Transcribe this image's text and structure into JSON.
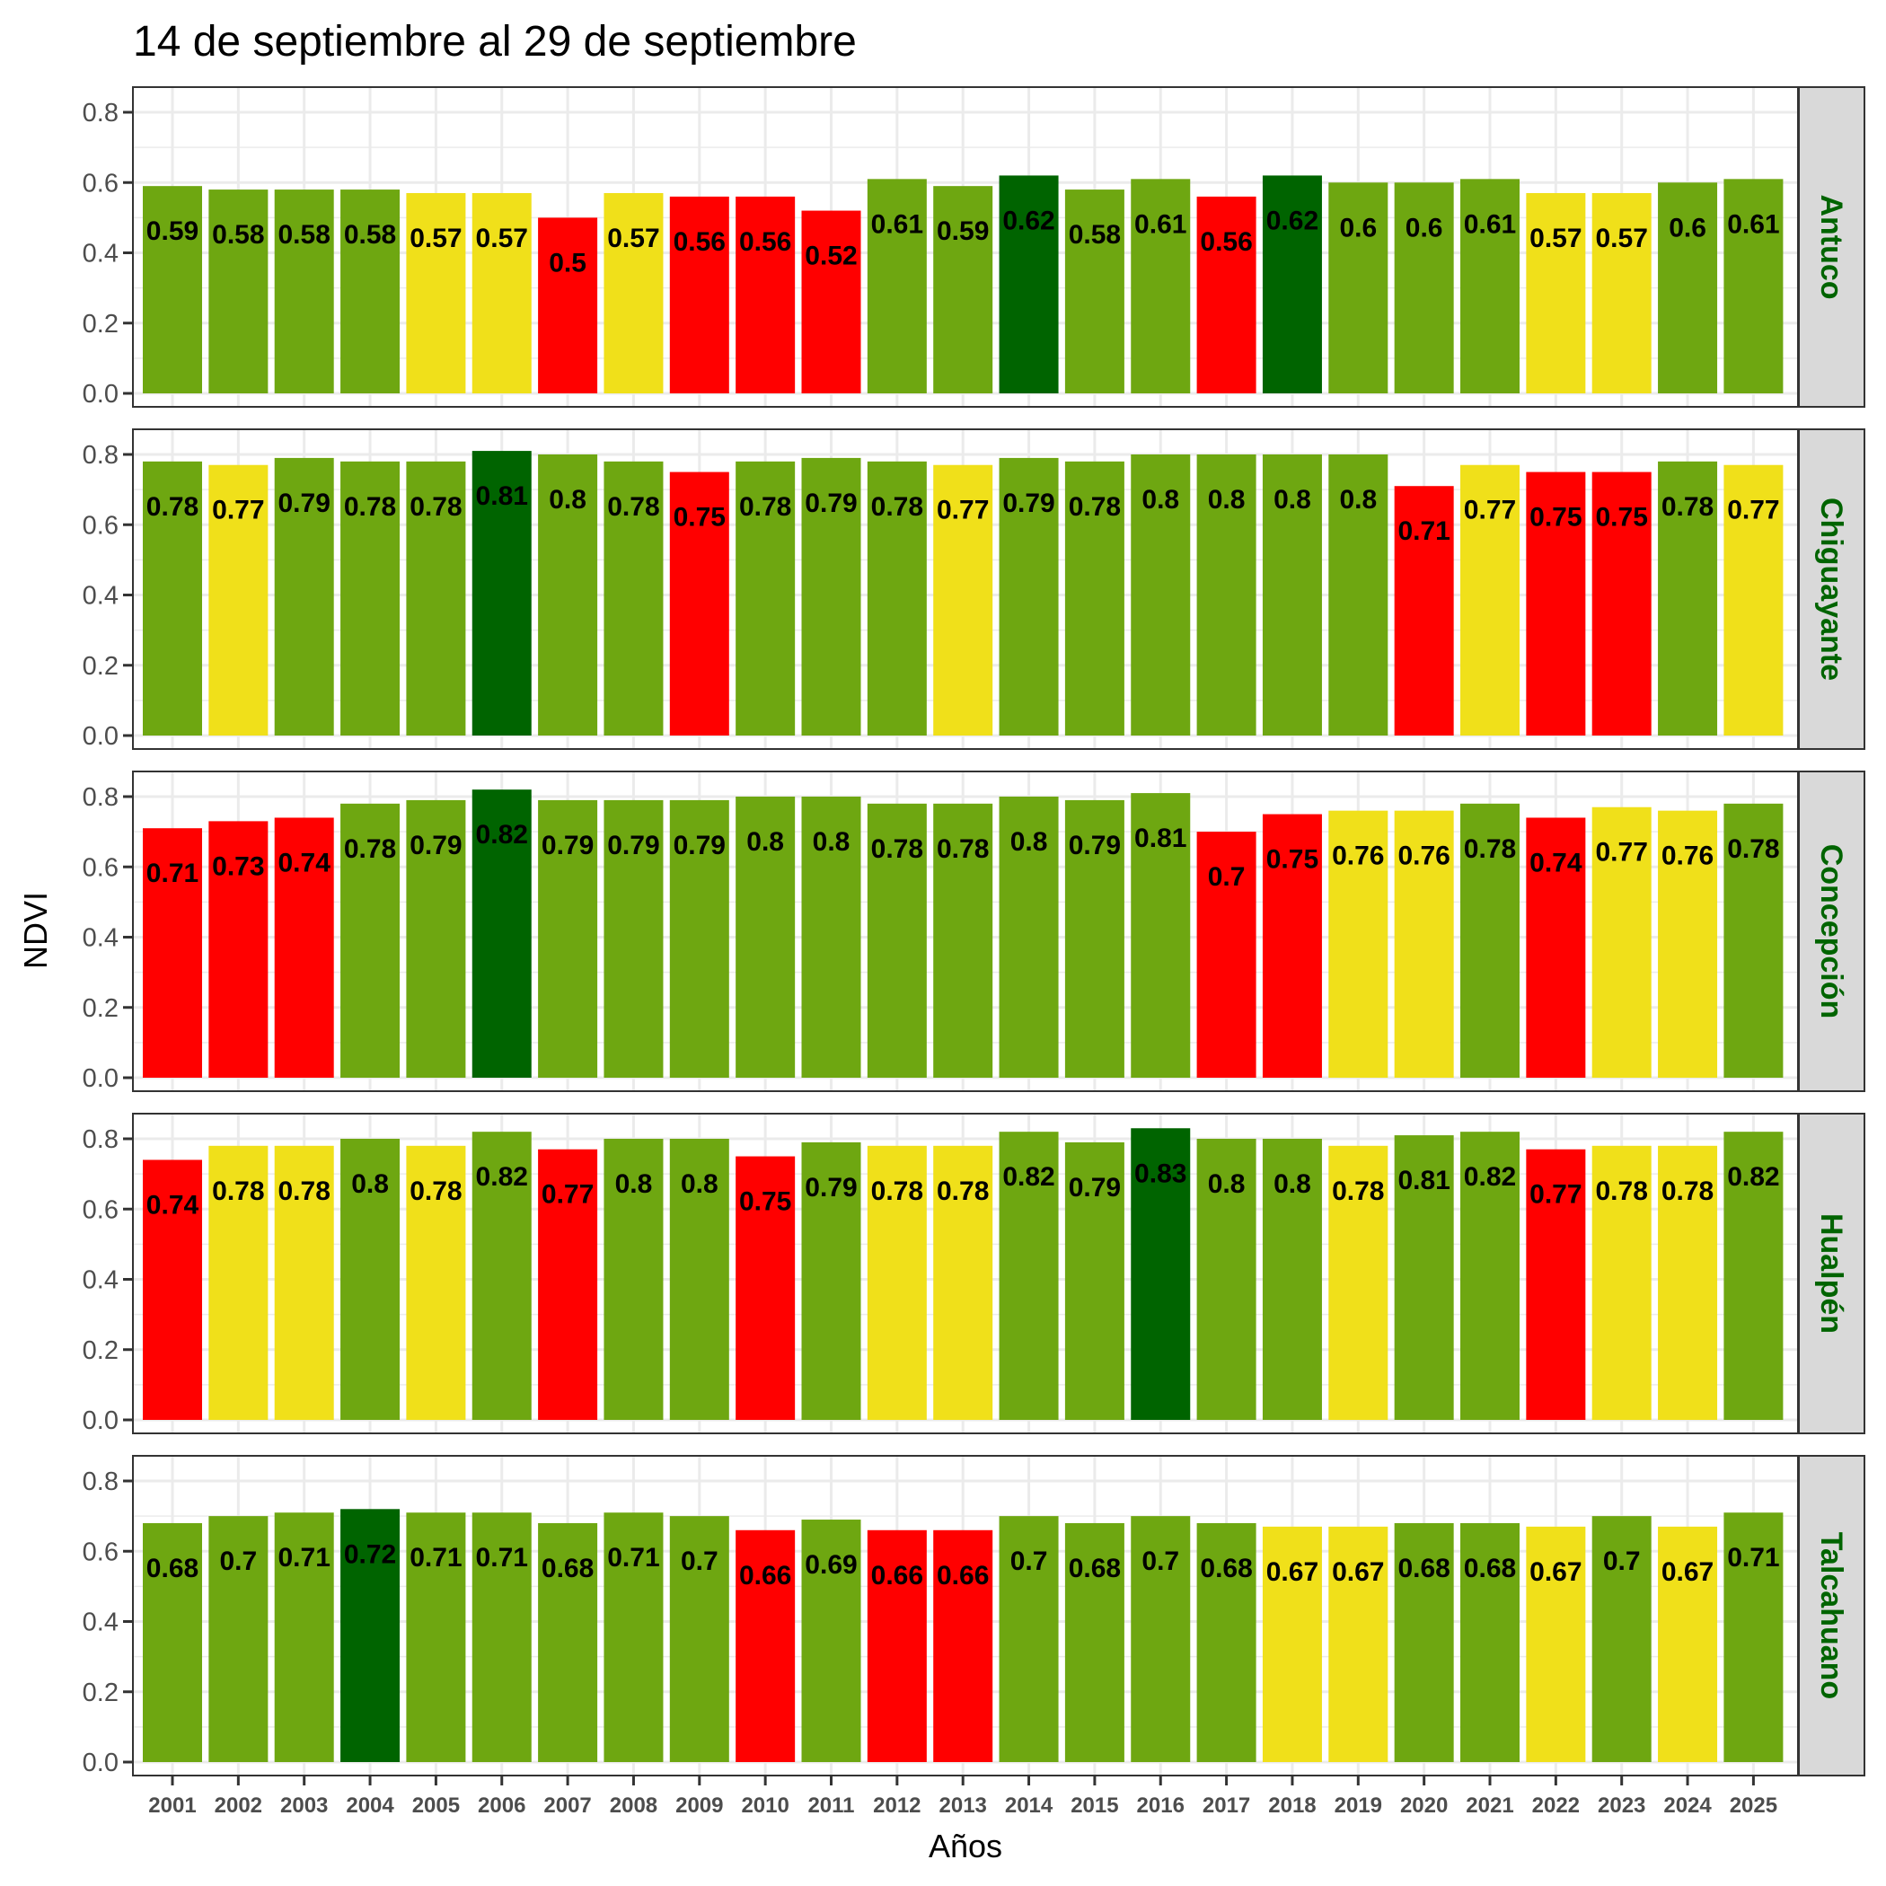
{
  "chart_data": {
    "type": "bar",
    "title": "14 de septiembre al 29 de septiembre",
    "xlabel": "Años",
    "ylabel": "NDVI",
    "ylim": [
      0,
      0.85
    ],
    "yticks": [
      "0.0",
      "0.2",
      "0.4",
      "0.6",
      "0.8"
    ],
    "ytick_values": [
      0,
      0.2,
      0.4,
      0.6,
      0.8
    ],
    "grid": true,
    "legend": "none",
    "facet_position": "right",
    "categories": [
      "2001",
      "2002",
      "2003",
      "2004",
      "2005",
      "2006",
      "2007",
      "2008",
      "2009",
      "2010",
      "2011",
      "2012",
      "2013",
      "2014",
      "2015",
      "2016",
      "2017",
      "2018",
      "2019",
      "2020",
      "2021",
      "2022",
      "2023",
      "2024",
      "2025"
    ],
    "palette": {
      "G": "#006400",
      "g": "#6EA711",
      "y": "#F0E01A",
      "r": "#FF0000"
    },
    "series": [
      {
        "name": "Antuco",
        "values": [
          0.59,
          0.58,
          0.58,
          0.58,
          0.57,
          0.57,
          0.5,
          0.57,
          0.56,
          0.56,
          0.52,
          0.61,
          0.59,
          0.62,
          0.58,
          0.61,
          0.56,
          0.62,
          0.6,
          0.6,
          0.61,
          0.57,
          0.57,
          0.6,
          0.61
        ],
        "labels": [
          "0.59",
          "0.58",
          "0.58",
          "0.58",
          "0.57",
          "0.57",
          "0.5",
          "0.57",
          "0.56",
          "0.56",
          "0.52",
          "0.61",
          "0.59",
          "0.62",
          "0.58",
          "0.61",
          "0.56",
          "0.62",
          "0.6",
          "0.6",
          "0.61",
          "0.57",
          "0.57",
          "0.6",
          "0.61"
        ],
        "colors": [
          "g",
          "g",
          "g",
          "g",
          "y",
          "y",
          "r",
          "y",
          "r",
          "r",
          "r",
          "g",
          "g",
          "G",
          "g",
          "g",
          "r",
          "G",
          "g",
          "g",
          "g",
          "y",
          "y",
          "g",
          "g"
        ]
      },
      {
        "name": "Chiguayante",
        "values": [
          0.78,
          0.77,
          0.79,
          0.78,
          0.78,
          0.81,
          0.8,
          0.78,
          0.75,
          0.78,
          0.79,
          0.78,
          0.77,
          0.79,
          0.78,
          0.8,
          0.8,
          0.8,
          0.8,
          0.71,
          0.77,
          0.75,
          0.75,
          0.78,
          0.77
        ],
        "labels": [
          "0.78",
          "0.77",
          "0.79",
          "0.78",
          "0.78",
          "0.81",
          "0.8",
          "0.78",
          "0.75",
          "0.78",
          "0.79",
          "0.78",
          "0.77",
          "0.79",
          "0.78",
          "0.8",
          "0.8",
          "0.8",
          "0.8",
          "0.71",
          "0.77",
          "0.75",
          "0.75",
          "0.78",
          "0.77"
        ],
        "colors": [
          "g",
          "y",
          "g",
          "g",
          "g",
          "G",
          "g",
          "g",
          "r",
          "g",
          "g",
          "g",
          "y",
          "g",
          "g",
          "g",
          "g",
          "g",
          "g",
          "r",
          "y",
          "r",
          "r",
          "g",
          "y"
        ]
      },
      {
        "name": "Concepción",
        "values": [
          0.71,
          0.73,
          0.74,
          0.78,
          0.79,
          0.82,
          0.79,
          0.79,
          0.79,
          0.8,
          0.8,
          0.78,
          0.78,
          0.8,
          0.79,
          0.81,
          0.7,
          0.75,
          0.76,
          0.76,
          0.78,
          0.74,
          0.77,
          0.76,
          0.78
        ],
        "labels": [
          "0.71",
          "0.73",
          "0.74",
          "0.78",
          "0.79",
          "0.82",
          "0.79",
          "0.79",
          "0.79",
          "0.8",
          "0.8",
          "0.78",
          "0.78",
          "0.8",
          "0.79",
          "0.81",
          "0.7",
          "0.75",
          "0.76",
          "0.76",
          "0.78",
          "0.74",
          "0.77",
          "0.76",
          "0.78"
        ],
        "colors": [
          "r",
          "r",
          "r",
          "g",
          "g",
          "G",
          "g",
          "g",
          "g",
          "g",
          "g",
          "g",
          "g",
          "g",
          "g",
          "g",
          "r",
          "r",
          "y",
          "y",
          "g",
          "r",
          "y",
          "y",
          "g"
        ]
      },
      {
        "name": "Hualpén",
        "values": [
          0.74,
          0.78,
          0.78,
          0.8,
          0.78,
          0.82,
          0.77,
          0.8,
          0.8,
          0.75,
          0.79,
          0.78,
          0.78,
          0.82,
          0.79,
          0.83,
          0.8,
          0.8,
          0.78,
          0.81,
          0.82,
          0.77,
          0.78,
          0.78,
          0.82
        ],
        "labels": [
          "0.74",
          "0.78",
          "0.78",
          "0.8",
          "0.78",
          "0.82",
          "0.77",
          "0.8",
          "0.8",
          "0.75",
          "0.79",
          "0.78",
          "0.78",
          "0.82",
          "0.79",
          "0.83",
          "0.8",
          "0.8",
          "0.78",
          "0.81",
          "0.82",
          "0.77",
          "0.78",
          "0.78",
          "0.82"
        ],
        "colors": [
          "r",
          "y",
          "y",
          "g",
          "y",
          "g",
          "r",
          "g",
          "g",
          "r",
          "g",
          "y",
          "y",
          "g",
          "g",
          "G",
          "g",
          "g",
          "y",
          "g",
          "g",
          "r",
          "y",
          "y",
          "g"
        ]
      },
      {
        "name": "Talcahuano",
        "values": [
          0.68,
          0.7,
          0.71,
          0.72,
          0.71,
          0.71,
          0.68,
          0.71,
          0.7,
          0.66,
          0.69,
          0.66,
          0.66,
          0.7,
          0.68,
          0.7,
          0.68,
          0.67,
          0.67,
          0.68,
          0.68,
          0.67,
          0.7,
          0.67,
          0.71
        ],
        "labels": [
          "0.68",
          "0.7",
          "0.71",
          "0.72",
          "0.71",
          "0.71",
          "0.68",
          "0.71",
          "0.7",
          "0.66",
          "0.69",
          "0.66",
          "0.66",
          "0.7",
          "0.68",
          "0.7",
          "0.68",
          "0.67",
          "0.67",
          "0.68",
          "0.68",
          "0.67",
          "0.7",
          "0.67",
          "0.71"
        ],
        "colors": [
          "g",
          "g",
          "g",
          "G",
          "g",
          "g",
          "g",
          "g",
          "g",
          "r",
          "g",
          "r",
          "r",
          "g",
          "g",
          "g",
          "g",
          "y",
          "y",
          "g",
          "g",
          "y",
          "g",
          "y",
          "g"
        ]
      }
    ]
  }
}
